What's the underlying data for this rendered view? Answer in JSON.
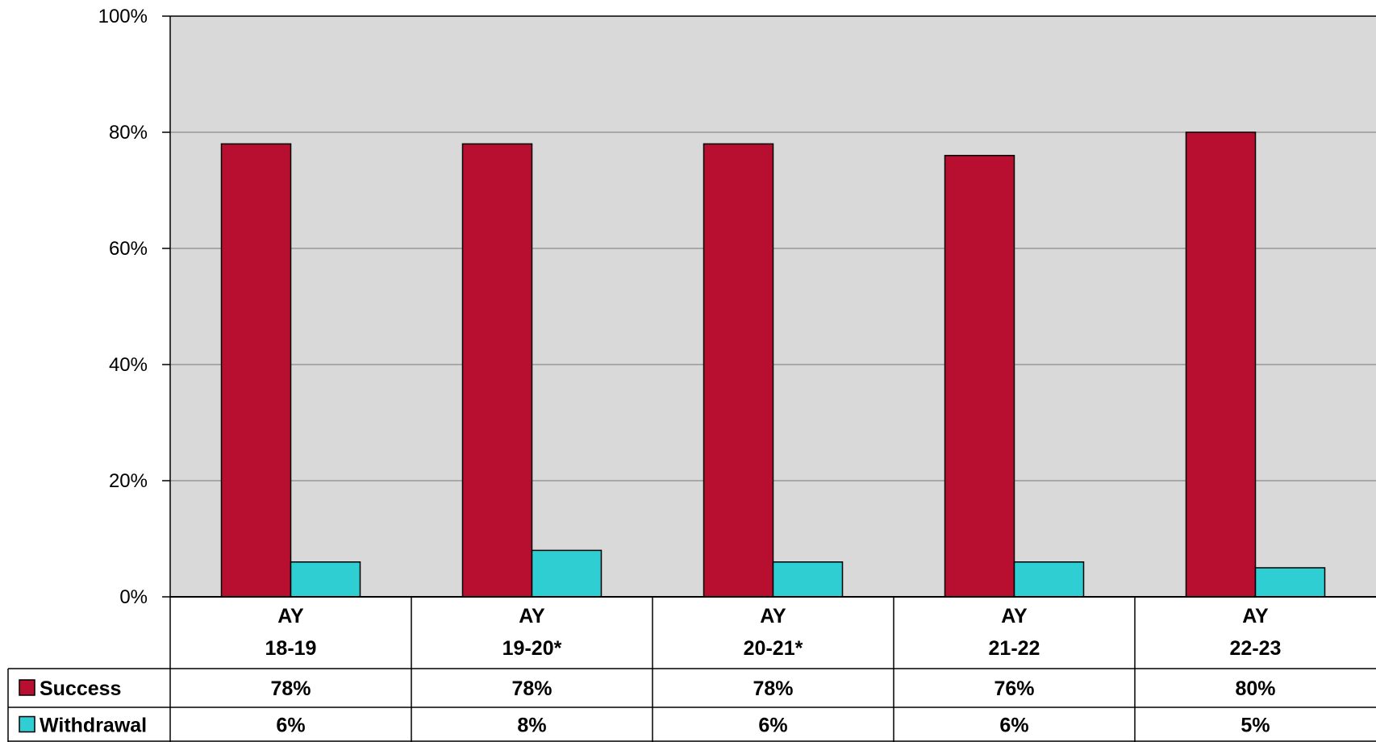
{
  "chart_data": {
    "type": "bar",
    "title": "",
    "xlabel": "",
    "ylabel": "",
    "ylim": [
      0,
      100
    ],
    "y_ticks": [
      "0%",
      "20%",
      "40%",
      "60%",
      "80%",
      "100%"
    ],
    "grid": true,
    "legend": "data-table",
    "categories": [
      [
        "AY",
        "18-19"
      ],
      [
        "AY",
        "19-20*"
      ],
      [
        "AY",
        "20-21*"
      ],
      [
        "AY",
        "21-22"
      ],
      [
        "AY",
        "22-23"
      ]
    ],
    "series": [
      {
        "name": "Success",
        "color": "#B80F31",
        "values": [
          78,
          78,
          78,
          76,
          80
        ],
        "labels": [
          "78%",
          "78%",
          "78%",
          "76%",
          "80%"
        ]
      },
      {
        "name": "Withdrawal",
        "color": "#2ECED3",
        "values": [
          6,
          8,
          6,
          6,
          5
        ],
        "labels": [
          "6%",
          "8%",
          "6%",
          "6%",
          "5%"
        ]
      }
    ],
    "plot_background": "#D9D9D9"
  }
}
